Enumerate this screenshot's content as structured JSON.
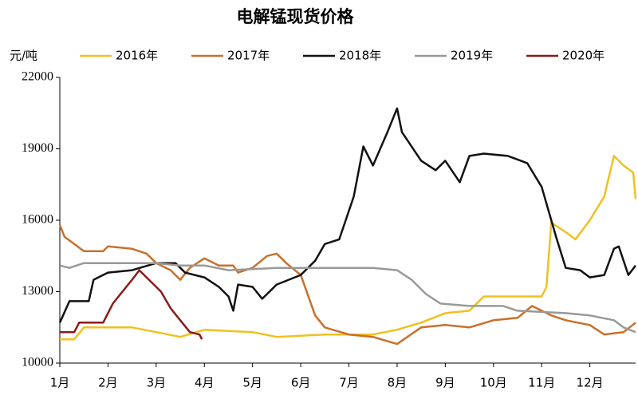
{
  "chart_data": {
    "type": "line",
    "title": "电解锰现货价格",
    "ylabel": "元/吨",
    "xlim": [
      1,
      12.95
    ],
    "xticks": [
      {
        "value": 1,
        "label": "1月"
      },
      {
        "value": 2,
        "label": "2月"
      },
      {
        "value": 3,
        "label": "3月"
      },
      {
        "value": 4,
        "label": "4月"
      },
      {
        "value": 5,
        "label": "5月"
      },
      {
        "value": 6,
        "label": "6月"
      },
      {
        "value": 7,
        "label": "7月"
      },
      {
        "value": 8,
        "label": "8月"
      },
      {
        "value": 9,
        "label": "9月"
      },
      {
        "value": 10,
        "label": "10月"
      },
      {
        "value": 11,
        "label": "11月"
      },
      {
        "value": 12,
        "label": "12月"
      }
    ],
    "ylim": [
      10000,
      22000
    ],
    "yticks": [
      10000,
      13000,
      16000,
      19000,
      22000
    ],
    "grid": false,
    "legend": "top",
    "series": [
      {
        "name": "2016年",
        "color": "#f0c020",
        "x": [
          1,
          1.3,
          1.5,
          2.5,
          3,
          3.5,
          4,
          5,
          5.5,
          6.5,
          7.5,
          8,
          8.5,
          9,
          9.5,
          9.8,
          11,
          11.1,
          11.2,
          11.5,
          11.7,
          12,
          12.3,
          12.5,
          12.7,
          12.9,
          12.95
        ],
        "values": [
          11000,
          11000,
          11500,
          11500,
          11300,
          11100,
          11400,
          11300,
          11100,
          11200,
          11200,
          11400,
          11700,
          12100,
          12200,
          12800,
          12800,
          13200,
          15900,
          15500,
          15200,
          16000,
          17000,
          18700,
          18300,
          18000,
          16900
        ]
      },
      {
        "name": "2017年",
        "color": "#c8702a",
        "x": [
          1,
          1.1,
          1.3,
          1.5,
          1.9,
          2,
          2.5,
          2.8,
          3,
          3.3,
          3.5,
          3.7,
          4,
          4.3,
          4.6,
          4.7,
          5,
          5.3,
          5.5,
          5.7,
          6,
          6.3,
          6.5,
          7,
          7.5,
          8,
          8.5,
          9,
          9.5,
          10,
          10.5,
          10.8,
          11.2,
          11.5,
          12,
          12.3,
          12.7,
          12.95
        ],
        "values": [
          15800,
          15300,
          15000,
          14700,
          14700,
          14900,
          14800,
          14600,
          14200,
          13900,
          13500,
          14000,
          14400,
          14100,
          14100,
          13800,
          14000,
          14500,
          14600,
          14200,
          13700,
          12000,
          11500,
          11200,
          11100,
          10800,
          11500,
          11600,
          11500,
          11800,
          11900,
          12400,
          12000,
          11800,
          11600,
          11200,
          11300,
          11700
        ]
      },
      {
        "name": "2018年",
        "color": "#111111",
        "x": [
          1,
          1.2,
          1.6,
          1.7,
          2,
          2.5,
          3,
          3.4,
          3.6,
          4,
          4.3,
          4.5,
          4.6,
          4.7,
          5,
          5.2,
          5.5,
          6,
          6.3,
          6.5,
          6.8,
          7.1,
          7.3,
          7.5,
          7.8,
          8,
          8.1,
          8.5,
          8.8,
          9,
          9.3,
          9.5,
          9.8,
          10.3,
          10.7,
          11,
          11.3,
          11.5,
          11.8,
          12,
          12.3,
          12.5,
          12.6,
          12.8,
          12.95
        ],
        "values": [
          11700,
          12600,
          12600,
          13500,
          13800,
          13900,
          14200,
          14200,
          13800,
          13600,
          13200,
          12800,
          12200,
          13300,
          13200,
          12700,
          13300,
          13700,
          14300,
          15000,
          15200,
          17000,
          19100,
          18300,
          19700,
          20700,
          19700,
          18500,
          18100,
          18500,
          17600,
          18700,
          18800,
          18700,
          18400,
          17400,
          15300,
          14000,
          13900,
          13600,
          13700,
          14800,
          14900,
          13700,
          14100
        ]
      },
      {
        "name": "2019年",
        "color": "#999999",
        "x": [
          1,
          1.2,
          1.5,
          3,
          3.5,
          4,
          4.5,
          5.5,
          6.5,
          7.5,
          8,
          8.3,
          8.6,
          8.9,
          9.5,
          10.2,
          10.5,
          11.5,
          12,
          12.5,
          12.7,
          12.95
        ],
        "values": [
          14100,
          14000,
          14200,
          14200,
          14100,
          14100,
          13900,
          14000,
          14000,
          14000,
          13900,
          13500,
          12900,
          12500,
          12400,
          12400,
          12200,
          12100,
          12000,
          11800,
          11500,
          11300
        ]
      },
      {
        "name": "2020年",
        "color": "#8b1a1a",
        "x": [
          1,
          1.3,
          1.4,
          1.9,
          2.1,
          2.3,
          2.5,
          2.65,
          2.8,
          3.1,
          3.3,
          3.5,
          3.7,
          3.9,
          3.95
        ],
        "values": [
          11300,
          11300,
          11700,
          11700,
          12500,
          13000,
          13500,
          13900,
          13600,
          13000,
          12300,
          11800,
          11300,
          11200,
          11000
        ]
      }
    ]
  }
}
